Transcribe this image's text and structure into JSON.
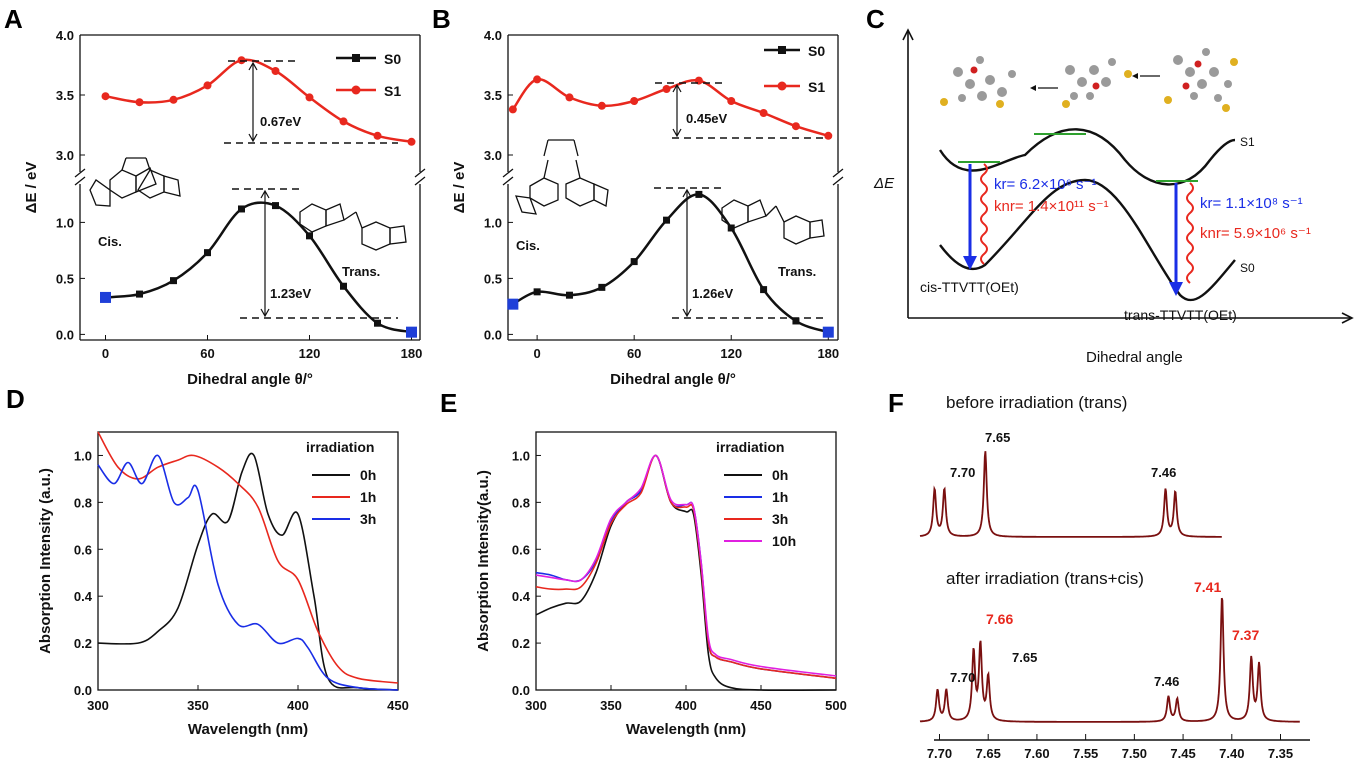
{
  "panel_letters": {
    "a": "A",
    "b": "B",
    "c": "C",
    "d": "D",
    "e": "E",
    "f": "F"
  },
  "labels": {
    "angle_axis": "Dihedral angle θ/°",
    "dE_axis": "ΔE / eV",
    "s0": "S0",
    "s1": "S1",
    "cis": "Cis.",
    "trans": "Trans.",
    "panelA_gap_s1": "0.67eV",
    "panelA_gap_s0": "1.23eV",
    "panelB_gap_s1": "0.45eV",
    "panelB_gap_s0": "1.26eV",
    "c_yaxis": "ΔE",
    "c_xaxis": "Dihedral angle",
    "c_s1": "S1",
    "c_s0": "S0",
    "c_cis": "cis-TTVTT(OEt)",
    "c_trans": "trans-TTVTT(OEt)",
    "c_kr_cis": "kr= 6.2×10⁶ s⁻¹",
    "c_knr_cis": "knr= 1.4×10¹¹ s⁻¹",
    "c_kr_trans": "kr= 1.1×10⁸ s⁻¹",
    "c_knr_trans": "knr= 5.9×10⁶ s⁻¹",
    "abs_axis_d": "Absorption Intensity (a.u.)",
    "abs_axis_e": "Absorption Intensity(a.u.)",
    "wavelength_axis": "Wavelength (nm)",
    "irradiation": "irradiation",
    "f_before": "before irradiation (trans)",
    "f_after": "after irradiation (trans+cis)",
    "f_peak_770": "7.70",
    "f_peak_765": "7.65",
    "f_peak_746": "7.46",
    "f_peak_766": "7.66",
    "f_peak_741": "7.41",
    "f_peak_737": "7.37"
  },
  "colors": {
    "black": "#111111",
    "red": "#e8281e",
    "blue": "#1a2ee6",
    "magenta": "#e020e0",
    "green": "#2ea02e",
    "nmr": "#7a1010",
    "marker_end": "#1f3fd8"
  },
  "chart_data": [
    {
      "id": "A",
      "type": "line",
      "xlabel": "Dihedral angle θ/°",
      "ylabel": "ΔE / eV",
      "xlim": [
        -15,
        185
      ],
      "xticks": [
        0,
        60,
        120,
        180
      ],
      "yticks_upper": [
        3.0,
        3.5,
        4.0
      ],
      "yticks_lower": [
        0.0,
        0.5,
        1.0
      ],
      "series": [
        {
          "name": "S0",
          "x": [
            0,
            20,
            40,
            60,
            80,
            100,
            120,
            140,
            160,
            180
          ],
          "values": [
            0.33,
            0.36,
            0.48,
            0.73,
            1.12,
            1.15,
            0.88,
            0.43,
            0.1,
            0.02
          ]
        },
        {
          "name": "S1",
          "x": [
            0,
            20,
            40,
            60,
            80,
            100,
            120,
            140,
            160,
            180
          ],
          "values": [
            3.49,
            3.44,
            3.46,
            3.58,
            3.79,
            3.7,
            3.48,
            3.28,
            3.16,
            3.11
          ]
        }
      ]
    },
    {
      "id": "B",
      "type": "line",
      "xlabel": "Dihedral angle θ/°",
      "ylabel": "ΔE / eV",
      "xlim": [
        -18,
        186
      ],
      "xticks": [
        0,
        60,
        120,
        180
      ],
      "yticks_upper": [
        3.0,
        3.5,
        4.0
      ],
      "yticks_lower": [
        0.0,
        0.5,
        1.0
      ],
      "series": [
        {
          "name": "S0",
          "x": [
            -15,
            0,
            20,
            40,
            60,
            80,
            100,
            120,
            140,
            160,
            180
          ],
          "values": [
            0.27,
            0.38,
            0.35,
            0.42,
            0.65,
            1.02,
            1.25,
            0.95,
            0.4,
            0.12,
            0.02
          ]
        },
        {
          "name": "S1",
          "x": [
            -15,
            0,
            20,
            40,
            60,
            80,
            100,
            120,
            140,
            160,
            180
          ],
          "values": [
            3.38,
            3.63,
            3.48,
            3.41,
            3.45,
            3.55,
            3.62,
            3.45,
            3.35,
            3.24,
            3.16
          ]
        }
      ]
    },
    {
      "id": "D",
      "type": "line",
      "xlabel": "Wavelength (nm)",
      "ylabel": "Absorption Intensity (a.u.)",
      "xlim": [
        300,
        450
      ],
      "ylim": [
        0,
        1.1
      ],
      "xticks": [
        300,
        350,
        400,
        450
      ],
      "yticks": [
        0.0,
        0.2,
        0.4,
        0.6,
        0.8,
        1.0
      ],
      "legend_title": "irradiation",
      "series": [
        {
          "name": "0h",
          "x": [
            300,
            320,
            330,
            340,
            350,
            357,
            365,
            372,
            378,
            385,
            392,
            400,
            408,
            415,
            430,
            450
          ],
          "values": [
            0.2,
            0.2,
            0.25,
            0.35,
            0.62,
            0.75,
            0.72,
            0.93,
            1.0,
            0.75,
            0.66,
            0.75,
            0.4,
            0.05,
            0.01,
            0.0
          ]
        },
        {
          "name": "1h",
          "x": [
            300,
            310,
            320,
            330,
            340,
            348,
            360,
            370,
            380,
            390,
            400,
            410,
            420,
            430,
            450
          ],
          "values": [
            1.1,
            0.95,
            0.9,
            0.95,
            0.98,
            1.0,
            0.95,
            0.88,
            0.78,
            0.55,
            0.47,
            0.25,
            0.1,
            0.05,
            0.03
          ]
        },
        {
          "name": "3h",
          "x": [
            300,
            308,
            315,
            322,
            330,
            338,
            345,
            350,
            360,
            370,
            380,
            390,
            400,
            405,
            415,
            430,
            450
          ],
          "values": [
            0.96,
            0.88,
            0.97,
            0.88,
            1.0,
            0.8,
            0.82,
            0.85,
            0.45,
            0.28,
            0.28,
            0.2,
            0.22,
            0.18,
            0.05,
            0.01,
            0.0
          ]
        }
      ]
    },
    {
      "id": "E",
      "type": "line",
      "xlabel": "Wavelength (nm)",
      "ylabel": "Absorption Intensity(a.u.)",
      "xlim": [
        300,
        500
      ],
      "ylim": [
        0,
        1.1
      ],
      "xticks": [
        300,
        350,
        400,
        450,
        500
      ],
      "yticks": [
        0.0,
        0.2,
        0.4,
        0.6,
        0.8,
        1.0
      ],
      "legend_title": "irradiation",
      "series": [
        {
          "name": "0h",
          "x": [
            300,
            310,
            320,
            330,
            340,
            350,
            360,
            370,
            380,
            390,
            400,
            405,
            410,
            415,
            420,
            430,
            450,
            500
          ],
          "values": [
            0.32,
            0.35,
            0.37,
            0.38,
            0.5,
            0.7,
            0.8,
            0.85,
            1.0,
            0.8,
            0.76,
            0.75,
            0.5,
            0.15,
            0.05,
            0.01,
            0.0,
            0.0
          ]
        },
        {
          "name": "1h",
          "x": [
            300,
            310,
            320,
            330,
            340,
            350,
            360,
            370,
            380,
            390,
            400,
            405,
            410,
            415,
            420,
            430,
            450,
            500
          ],
          "values": [
            0.5,
            0.49,
            0.47,
            0.47,
            0.55,
            0.72,
            0.8,
            0.85,
            1.0,
            0.8,
            0.79,
            0.78,
            0.55,
            0.2,
            0.14,
            0.12,
            0.09,
            0.05
          ]
        },
        {
          "name": "3h",
          "x": [
            300,
            310,
            320,
            330,
            340,
            350,
            360,
            370,
            380,
            390,
            400,
            405,
            410,
            415,
            420,
            430,
            450,
            500
          ],
          "values": [
            0.44,
            0.43,
            0.43,
            0.44,
            0.54,
            0.71,
            0.79,
            0.84,
            1.0,
            0.8,
            0.78,
            0.77,
            0.53,
            0.2,
            0.14,
            0.12,
            0.09,
            0.05
          ]
        },
        {
          "name": "10h",
          "x": [
            300,
            310,
            320,
            330,
            340,
            350,
            360,
            370,
            380,
            390,
            400,
            405,
            410,
            415,
            420,
            430,
            450,
            500
          ],
          "values": [
            0.49,
            0.48,
            0.47,
            0.47,
            0.56,
            0.73,
            0.8,
            0.86,
            1.0,
            0.81,
            0.79,
            0.78,
            0.55,
            0.22,
            0.15,
            0.13,
            0.1,
            0.06
          ]
        }
      ]
    },
    {
      "id": "F",
      "type": "line",
      "xlabel": "",
      "xlim": [
        7.72,
        7.33
      ],
      "xticks": [
        7.7,
        7.65,
        7.6,
        7.55,
        7.5,
        7.45,
        7.4,
        7.35
      ],
      "series": [
        {
          "name": "before irradiation (trans)",
          "peaks": [
            [
              7.705,
              0.55
            ],
            [
              7.695,
              0.55
            ],
            [
              7.653,
              1.0
            ],
            [
              7.468,
              0.55
            ],
            [
              7.458,
              0.52
            ]
          ]
        },
        {
          "name": "after irradiation (trans+cis)",
          "peaks": [
            [
              7.702,
              0.25
            ],
            [
              7.693,
              0.25
            ],
            [
              7.665,
              0.55
            ],
            [
              7.658,
              0.6
            ],
            [
              7.65,
              0.35
            ],
            [
              7.465,
              0.2
            ],
            [
              7.456,
              0.18
            ],
            [
              7.41,
              1.0
            ],
            [
              7.38,
              0.5
            ],
            [
              7.372,
              0.45
            ]
          ]
        }
      ]
    }
  ]
}
